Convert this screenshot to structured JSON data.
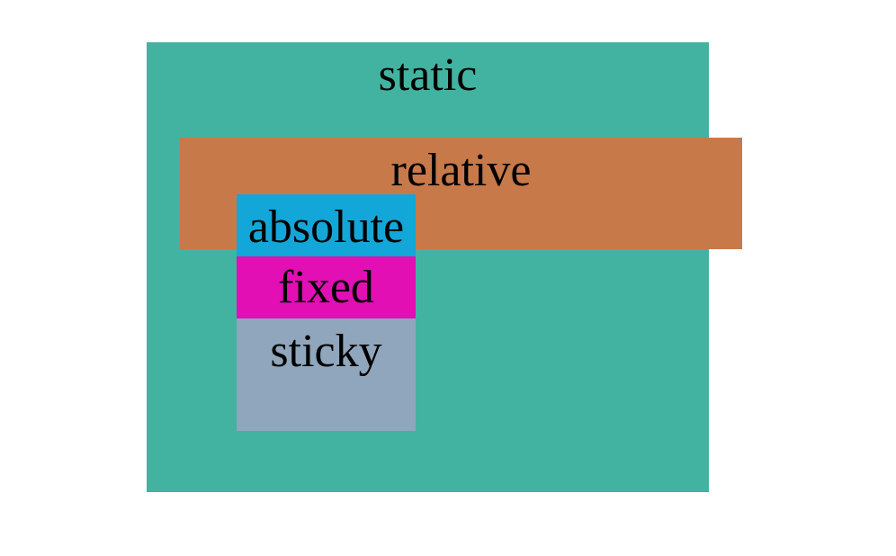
{
  "boxes": {
    "static": {
      "label": "static",
      "color": "#42b3a1"
    },
    "relative": {
      "label": "relative",
      "color": "#c87949"
    },
    "absolute": {
      "label": "absolute",
      "color": "#13a6d8"
    },
    "fixed": {
      "label": "fixed",
      "color": "#e10fb4"
    },
    "sticky": {
      "label": "sticky",
      "color": "#8fa6bc"
    }
  }
}
